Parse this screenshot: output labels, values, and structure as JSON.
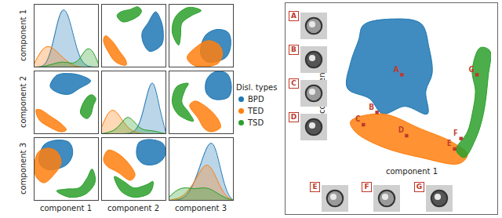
{
  "chart_data": [
    {
      "type": "pair_grid",
      "axis_labels": [
        "component 1",
        "component 2",
        "component 3"
      ],
      "legend_title": "Disl. types",
      "tick_labels": false,
      "xlim": [
        0,
        10
      ],
      "ylim": [
        0,
        10
      ],
      "density_ylim": [
        0,
        1
      ],
      "density_x": [
        0,
        1,
        2,
        3,
        4,
        5,
        6,
        7,
        8,
        9,
        10
      ],
      "pairs": [
        [
          1,
          2
        ],
        [
          1,
          3
        ],
        [
          2,
          3
        ]
      ],
      "series": [
        {
          "name": "BPD",
          "color": "#1f77b4",
          "density": [
            [
              0,
              0,
              0.05,
              0.4,
              0.9,
              0.95,
              0.55,
              0.15,
              0.02,
              0,
              0
            ],
            [
              0,
              0,
              0,
              0,
              0,
              0.02,
              0.15,
              0.6,
              0.95,
              0.4,
              0.02
            ],
            [
              0,
              0,
              0.02,
              0.1,
              0.3,
              0.6,
              0.9,
              0.95,
              0.5,
              0.1,
              0
            ]
          ],
          "regions": [
            [
              [
                2.5,
                7.5
              ],
              [
                3.5,
                9.3
              ],
              [
                5.5,
                9.6
              ],
              [
                7.5,
                9.2
              ],
              [
                8.8,
                8.4
              ],
              [
                7,
                7.2
              ],
              [
                5.5,
                6.3
              ],
              [
                3.8,
                6.5
              ]
            ],
            [
              [
                0.8,
                6
              ],
              [
                1.5,
                8.8
              ],
              [
                3.5,
                9.6
              ],
              [
                5.5,
                9.2
              ],
              [
                6,
                7.5
              ],
              [
                5.2,
                5.8
              ],
              [
                3.5,
                5
              ],
              [
                1.8,
                5
              ]
            ],
            [
              [
                5.5,
                7
              ],
              [
                5.8,
                9.2
              ],
              [
                7.5,
                9.7
              ],
              [
                9.6,
                9
              ],
              [
                9.8,
                7
              ],
              [
                8.5,
                5.8
              ],
              [
                6.5,
                5.8
              ]
            ]
          ]
        },
        {
          "name": "TED",
          "color": "#ff7f0e",
          "density": [
            [
              0.05,
              0.25,
              0.35,
              0.3,
              0.2,
              0.1,
              0.03,
              0,
              0,
              0,
              0
            ],
            [
              0.1,
              0.35,
              0.4,
              0.25,
              0.1,
              0.03,
              0,
              0,
              0,
              0,
              0
            ],
            [
              0,
              0.02,
              0.05,
              0.15,
              0.3,
              0.5,
              0.6,
              0.45,
              0.2,
              0.05,
              0
            ]
          ],
          "regions": [
            [
              [
                0.3,
                3.8
              ],
              [
                1,
                3.8
              ],
              [
                2.5,
                2.8
              ],
              [
                4.2,
                1.6
              ],
              [
                5,
                0.6
              ],
              [
                4.2,
                0.3
              ],
              [
                2.5,
                1
              ],
              [
                0.8,
                2.2
              ]
            ],
            [
              [
                0.2,
                4
              ],
              [
                0.5,
                7.5
              ],
              [
                2,
                8.3
              ],
              [
                3.5,
                7.8
              ],
              [
                4.2,
                6
              ],
              [
                3,
                4
              ],
              [
                1.5,
                2.8
              ]
            ],
            [
              [
                0.3,
                6.5
              ],
              [
                1,
                8
              ],
              [
                2.5,
                7.5
              ],
              [
                4.5,
                5.5
              ],
              [
                5.2,
                4
              ],
              [
                4.5,
                3.2
              ],
              [
                2.5,
                4.5
              ],
              [
                0.8,
                5.5
              ]
            ]
          ]
        },
        {
          "name": "TSD",
          "color": "#2ca02c",
          "density": [
            [
              0,
              0,
              0.02,
              0.05,
              0.08,
              0.08,
              0.05,
              0.1,
              0.3,
              0.3,
              0.05
            ],
            [
              0,
              0.02,
              0.05,
              0.15,
              0.3,
              0.2,
              0.08,
              0.05,
              0.05,
              0.02,
              0
            ],
            [
              0.05,
              0.15,
              0.2,
              0.2,
              0.18,
              0.2,
              0.2,
              0.15,
              0.08,
              0.03,
              0
            ]
          ],
          "regions": [
            [
              [
                7.2,
                3.3
              ],
              [
                8.2,
                5.8
              ],
              [
                9,
                6.2
              ],
              [
                9.6,
                5.6
              ],
              [
                9.2,
                4.5
              ],
              [
                8.8,
                3
              ],
              [
                8.2,
                2.4
              ]
            ],
            [
              [
                3.5,
                1.5
              ],
              [
                5.5,
                0.5
              ],
              [
                8,
                1
              ],
              [
                9.5,
                3
              ],
              [
                9,
                5
              ],
              [
                8.2,
                3.5
              ],
              [
                7,
                2
              ],
              [
                5,
                1.8
              ]
            ],
            [
              [
                2,
                3.8
              ],
              [
                3,
                1.5
              ],
              [
                5,
                0.5
              ],
              [
                7.5,
                1.2
              ],
              [
                8,
                3
              ],
              [
                7,
                2.5
              ],
              [
                5,
                2
              ],
              [
                3.5,
                3
              ]
            ]
          ]
        }
      ]
    },
    {
      "type": "scatter",
      "xlabel": "component 1",
      "ylabel": "component 2",
      "tick_labels": false,
      "xlim": [
        0,
        10
      ],
      "ylim": [
        0,
        10
      ],
      "series": [
        {
          "color": "#1f77b4",
          "region": [
            [
              2.0,
              9.3
            ],
            [
              3.7,
              9.7
            ],
            [
              5.6,
              9.4
            ],
            [
              6.1,
              7.8
            ],
            [
              6.3,
              6.1
            ],
            [
              5.9,
              4.9
            ],
            [
              6.0,
              3.4
            ],
            [
              4.6,
              3.9
            ],
            [
              3.2,
              3.4
            ],
            [
              2.4,
              4.4
            ],
            [
              1.0,
              5.1
            ],
            [
              1.2,
              6.8
            ],
            [
              1.7,
              8.3
            ]
          ]
        },
        {
          "color": "#ff7f0e",
          "region": [
            [
              1.2,
              2.9
            ],
            [
              3.2,
              3.4
            ],
            [
              5.6,
              2.4
            ],
            [
              7.6,
              1.5
            ],
            [
              8.5,
              0.7
            ],
            [
              8.0,
              0.1
            ],
            [
              5.6,
              0.5
            ],
            [
              3.2,
              1.2
            ],
            [
              1.5,
              2.2
            ]
          ]
        },
        {
          "color": "#2ca02c",
          "region": [
            [
              7.8,
              1.0
            ],
            [
              8.5,
              2.2
            ],
            [
              8.8,
              3.4
            ],
            [
              9.0,
              4.9
            ],
            [
              8.8,
              6.3
            ],
            [
              9.3,
              7.8
            ],
            [
              9.9,
              7.6
            ],
            [
              9.8,
              5.9
            ],
            [
              9.5,
              3.4
            ],
            [
              9.0,
              1.7
            ],
            [
              8.3,
              0.5
            ]
          ]
        }
      ],
      "annotations": [
        {
          "label": "A",
          "x": 4.4,
          "y": 6.0,
          "color": "#c0392b"
        },
        {
          "label": "B",
          "x": 2.85,
          "y": 3.5,
          "color": "#c0392b"
        },
        {
          "label": "C",
          "x": 2.0,
          "y": 2.68,
          "color": "#c0392b"
        },
        {
          "label": "D",
          "x": 4.7,
          "y": 1.95,
          "color": "#c0392b"
        },
        {
          "label": "E",
          "x": 7.7,
          "y": 1.07,
          "color": "#c0392b"
        },
        {
          "label": "F",
          "x": 8.1,
          "y": 1.76,
          "color": "#c0392b"
        },
        {
          "label": "G",
          "x": 9.1,
          "y": 6.0,
          "color": "#c0392b"
        }
      ]
    }
  ]
}
